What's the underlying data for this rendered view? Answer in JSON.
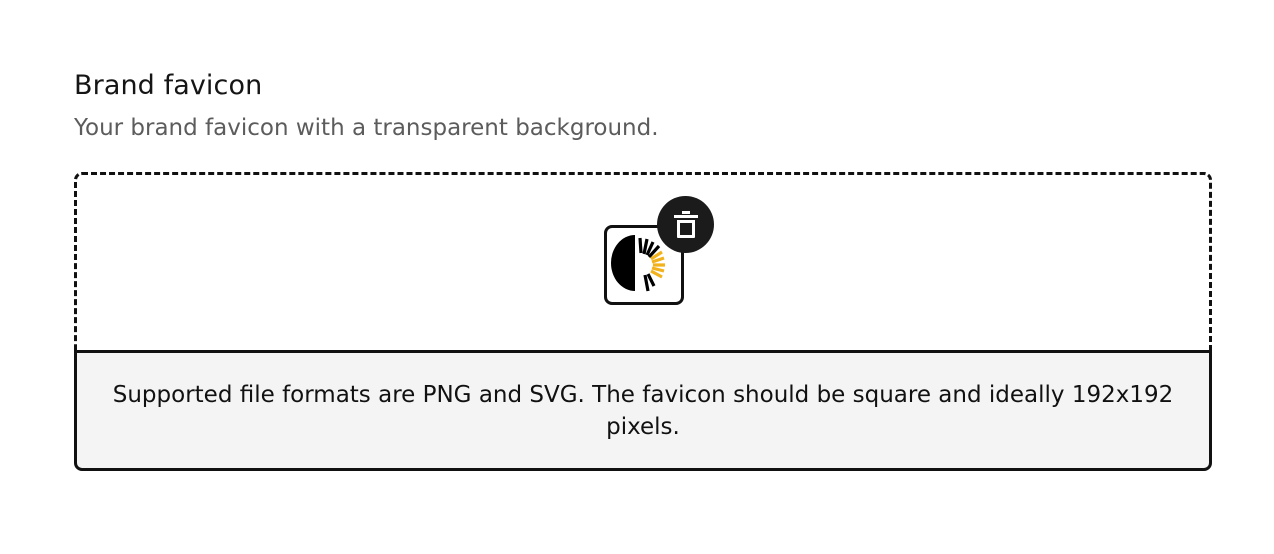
{
  "brand_favicon": {
    "title": "Brand favicon",
    "description": "Your brand favicon with a transparent background.",
    "uploader": {
      "preview_icon": "favicon-sunburst-logo",
      "delete_icon": "trash-icon",
      "help_text": "Supported file formats are PNG and SVG. The favicon should be square and ideally 192x192 pixels."
    }
  },
  "colors": {
    "text": "#111111",
    "muted": "#5c5c5c",
    "help_bg": "#f4f4f4",
    "accent": "#f2b21c"
  }
}
